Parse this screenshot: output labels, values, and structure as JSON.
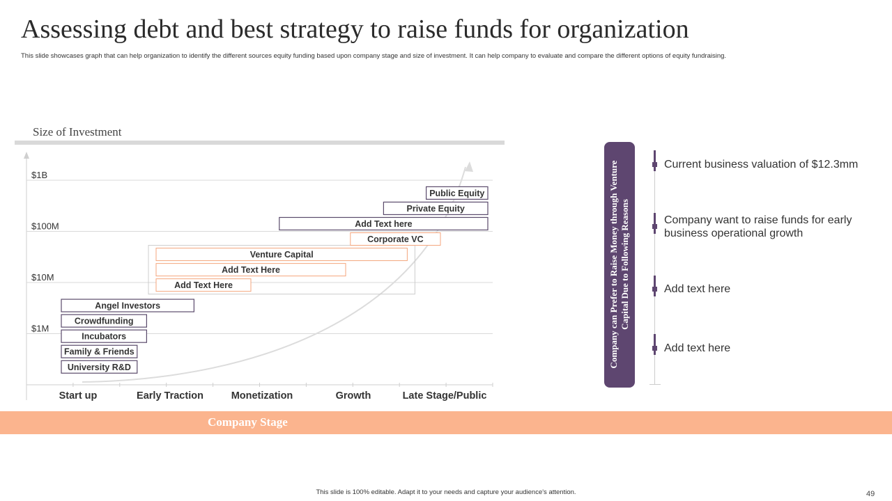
{
  "slide": {
    "title": "Assessing debt and best strategy to raise funds for organization",
    "subtitle": "This slide showcases graph that can help organization to identify the different sources equity funding based upon company stage and size of investment. It can help company to evaluate and compare the different options of equity fundraising.",
    "footer": "This slide is 100% editable. Adapt it to your needs and capture your audience's attention.",
    "page_number": "49"
  },
  "chart_data": {
    "type": "bar",
    "title": "",
    "ylabel": "Size of Investment",
    "xlabel": "Company Stage",
    "scale": "log",
    "y_ticks": [
      "$1M",
      "$10M",
      "$100M",
      "$1B"
    ],
    "categories": [
      "Start up",
      "Early Traction",
      "Monetization",
      "Growth",
      "Late Stage/Public"
    ],
    "ranges": [
      {
        "label": "University R&D",
        "start": 0.0,
        "end": 0.8,
        "level": 0.35,
        "style": "dark"
      },
      {
        "label": "Family & Friends",
        "start": 0.0,
        "end": 0.8,
        "level": 0.65,
        "style": "dark"
      },
      {
        "label": "Incubators",
        "start": 0.0,
        "end": 0.9,
        "level": 0.95,
        "style": "dark"
      },
      {
        "label": "Crowdfunding",
        "start": 0.0,
        "end": 0.9,
        "level": 1.25,
        "style": "dark"
      },
      {
        "label": "Angel Investors",
        "start": 0.0,
        "end": 1.4,
        "level": 1.55,
        "style": "dark"
      },
      {
        "label": "Add Text Here",
        "start": 1.0,
        "end": 2.0,
        "level": 1.95,
        "style": "orange"
      },
      {
        "label": "Add Text Here",
        "start": 1.0,
        "end": 3.0,
        "level": 2.25,
        "style": "orange"
      },
      {
        "label": "Venture Capital",
        "start": 1.0,
        "end": 3.65,
        "level": 2.55,
        "style": "orange"
      },
      {
        "label": "Corporate VC",
        "start": 3.05,
        "end": 4.0,
        "level": 2.85,
        "style": "orange"
      },
      {
        "label": "Add Text here",
        "start": 2.3,
        "end": 4.5,
        "level": 3.15,
        "style": "dark"
      },
      {
        "label": "Private Equity",
        "start": 3.4,
        "end": 4.5,
        "level": 3.45,
        "style": "dark"
      },
      {
        "label": "Public Equity",
        "start": 3.85,
        "end": 4.5,
        "level": 3.75,
        "style": "dark"
      }
    ],
    "grid": true,
    "growth_curve": true
  },
  "sidebar": {
    "heading": "Company can Prefer to Raise Money through Venture Capital Due to Following Reasons",
    "reasons": [
      "Current business valuation of $12.3mm",
      "Company want to raise funds for early business operational growth",
      "Add text here",
      "Add text here"
    ]
  },
  "colors": {
    "accent_purple": "#5e4670",
    "accent_orange": "#fbb48e",
    "range_dark_border": "#5a4a6b",
    "range_orange_border": "#f4a57c",
    "grid": "#d9d9d9"
  }
}
